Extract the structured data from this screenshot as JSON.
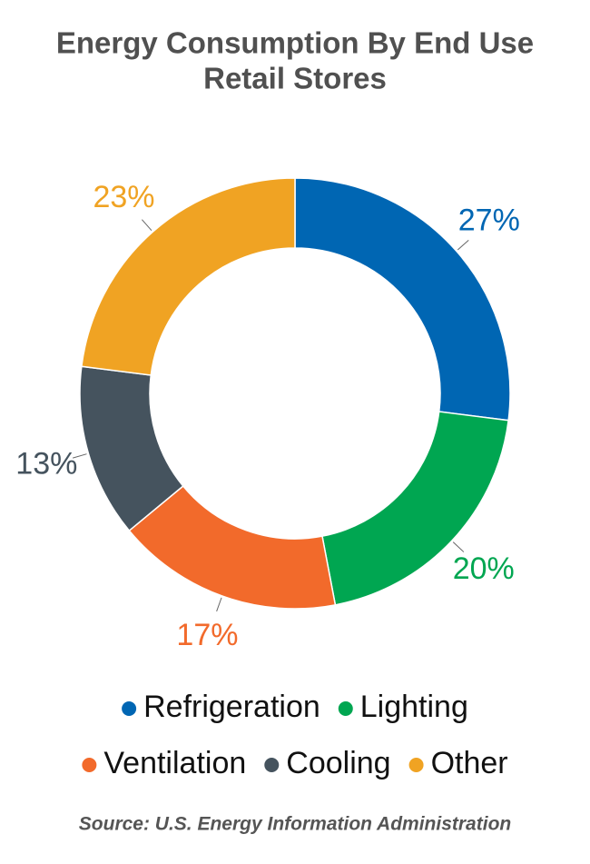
{
  "chart_data": {
    "type": "donut",
    "title": "Energy Consumption By End Use",
    "subtitle": "Retail Stores",
    "categories": [
      "Refrigeration",
      "Lighting",
      "Ventilation",
      "Cooling",
      "Other"
    ],
    "values": [
      27,
      20,
      17,
      13,
      23
    ],
    "value_labels": [
      "27%",
      "20%",
      "17%",
      "13%",
      "23%"
    ],
    "colors": [
      "#0066b3",
      "#00a651",
      "#f26a2b",
      "#45535e",
      "#f0a323"
    ],
    "source": "Source: U.S. Energy Information Administration"
  }
}
